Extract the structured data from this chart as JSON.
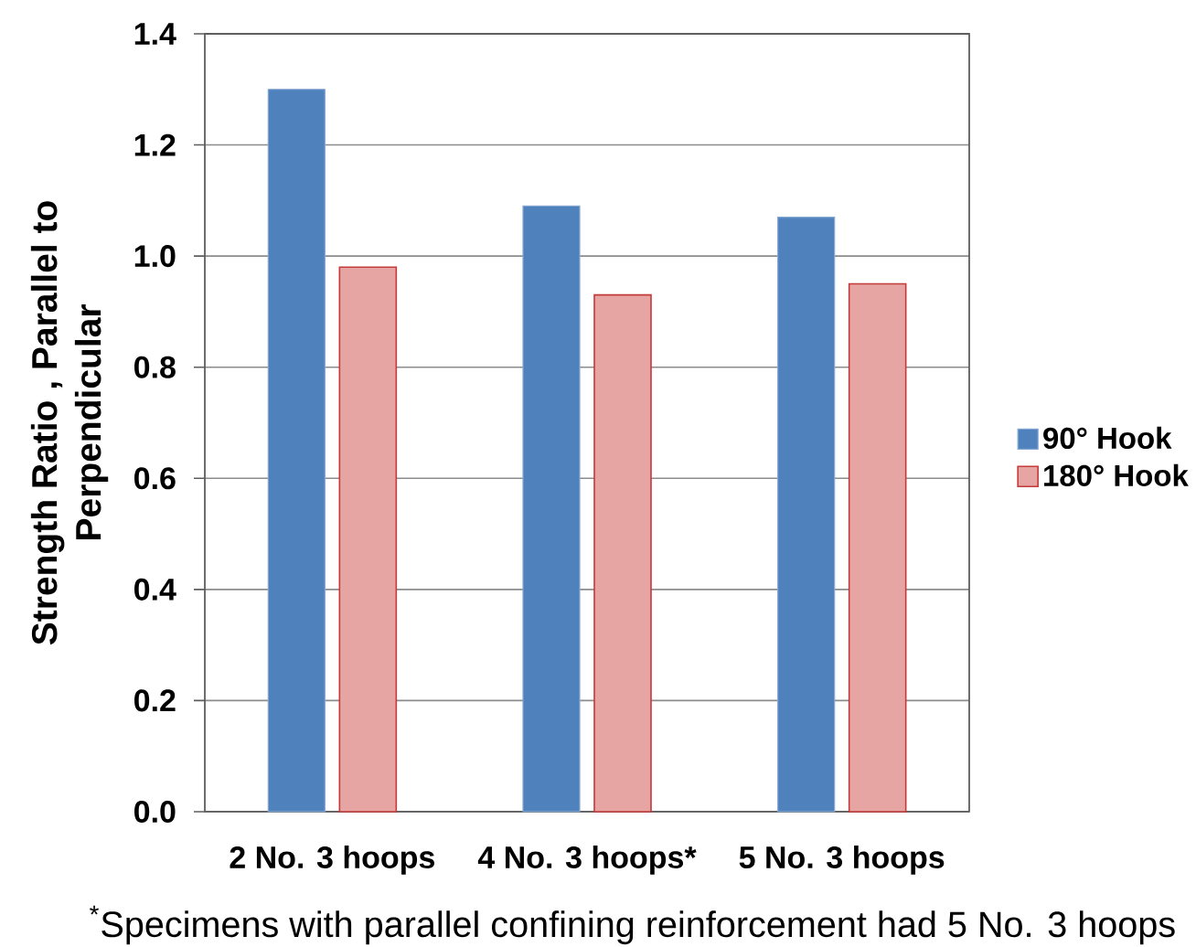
{
  "chart_data": {
    "type": "bar",
    "ylabel": "Strength Ratio , Parallel to Perpendicular",
    "categories": [
      "2 No. 3 hoops",
      "4 No. 3 hoops*",
      "5 No. 3 hoops"
    ],
    "series": [
      {
        "name": "90° Hook",
        "color": "#4f81bd",
        "values": [
          1.3,
          1.09,
          1.07
        ]
      },
      {
        "name": "180° Hook",
        "color": "#e6a4a2",
        "values": [
          0.98,
          0.93,
          0.95
        ]
      }
    ],
    "ylim": [
      0,
      1.4
    ],
    "yticks": [
      {
        "value": 0,
        "label": "0.0"
      },
      0.2,
      0.4,
      0.6,
      0.8,
      {
        "value": 1,
        "label": "1.0"
      },
      1.2,
      1.4
    ],
    "grid": "y",
    "legend": "right",
    "annotations": [
      "$^{*}$Specimens with parallel confining reinforcement had 5 No. 3 hoops"
    ]
  }
}
